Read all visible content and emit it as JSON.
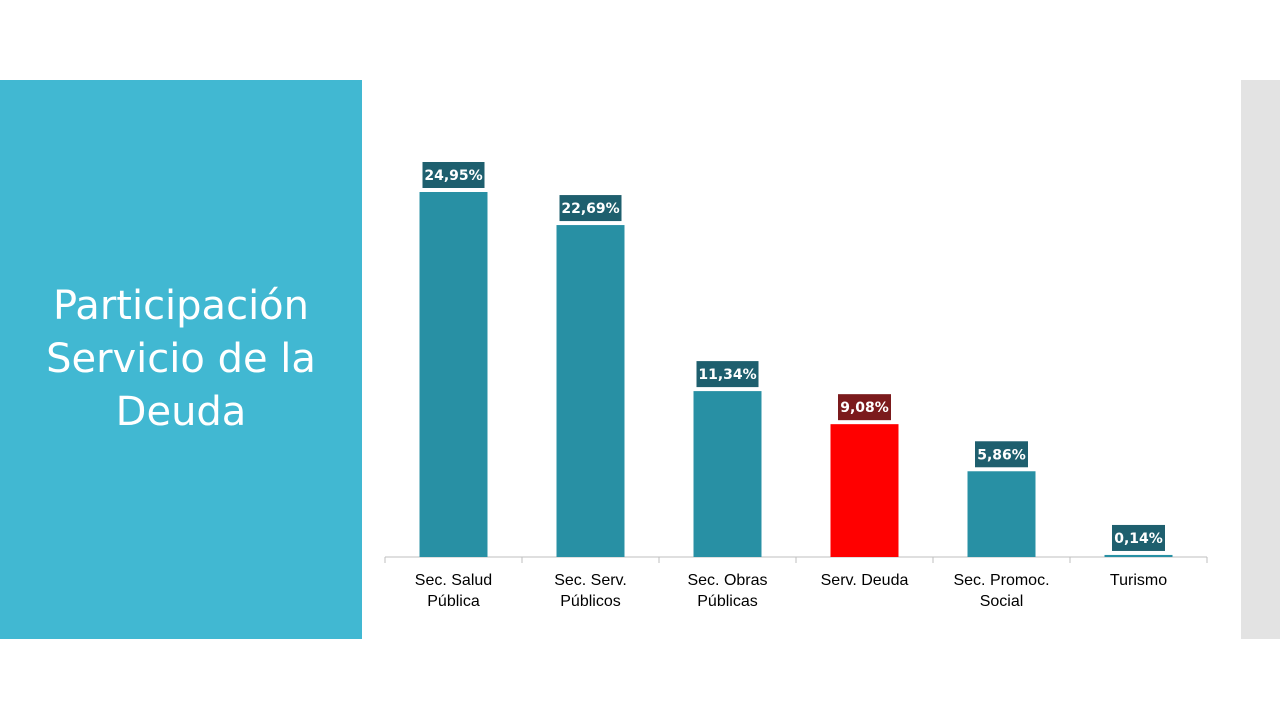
{
  "slide": {
    "title_lines": [
      "Participación",
      "Servicio de la",
      "Deuda"
    ],
    "panel_color": "#41b8d2",
    "strip_color": "#e3e3e3"
  },
  "chart_data": {
    "type": "bar",
    "categories": [
      [
        "Sec. Salud",
        "Pública"
      ],
      [
        "Sec. Serv.",
        "Públicos"
      ],
      [
        "Sec. Obras",
        "Públicas"
      ],
      [
        "Serv. Deuda"
      ],
      [
        "Sec. Promoc.",
        "Social"
      ],
      [
        "Turismo"
      ]
    ],
    "values": [
      24.95,
      22.69,
      11.34,
      9.08,
      5.86,
      0.14
    ],
    "data_labels": [
      "24,95%",
      "22,69%",
      "11,34%",
      "9,08%",
      "5,86%",
      "0,14%"
    ],
    "ylim": [
      0,
      26
    ],
    "grid": false,
    "legend": "none",
    "colors": {
      "bar": "#2890a4",
      "highlight_bar": "#ff0000",
      "label_bg": "#1e5f6e",
      "highlight_label_bg": "#7b1a1c",
      "axis": "#bfbfbf"
    },
    "highlight_index": 3
  }
}
